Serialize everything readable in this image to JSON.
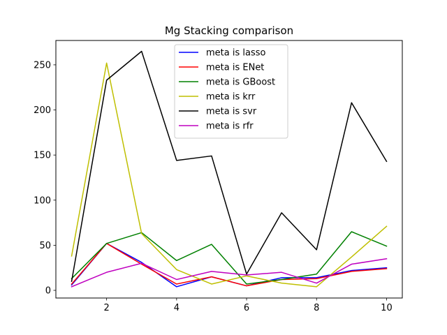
{
  "chart_data": {
    "type": "line",
    "title": "Mg Stacking comparison",
    "xlabel": "",
    "ylabel": "",
    "x": [
      1,
      2,
      3,
      4,
      5,
      6,
      7,
      8,
      9,
      10
    ],
    "xlim": [
      0.55,
      10.45
    ],
    "ylim": [
      -8.5,
      277
    ],
    "xticks": [
      2,
      4,
      6,
      8,
      10
    ],
    "yticks": [
      0,
      50,
      100,
      150,
      200,
      250
    ],
    "grid": false,
    "legend_position": "top-center",
    "series": [
      {
        "name": "meta is lasso",
        "color": "#0000ff",
        "values": [
          6,
          52,
          31,
          4,
          15,
          5,
          14,
          14,
          22,
          25
        ]
      },
      {
        "name": "meta is ENet",
        "color": "#ff0000",
        "values": [
          7,
          52,
          29,
          7,
          15,
          5,
          12,
          13,
          21,
          24
        ]
      },
      {
        "name": "meta is GBoost",
        "color": "#008000",
        "values": [
          13,
          52,
          64,
          33,
          51,
          7,
          12,
          18,
          65,
          49
        ]
      },
      {
        "name": "meta is krr",
        "color": "#bfbf00",
        "values": [
          38,
          252,
          63,
          23,
          7,
          16,
          8,
          4,
          37,
          71
        ]
      },
      {
        "name": "meta is svr",
        "color": "#000000",
        "values": [
          10,
          233,
          265,
          144,
          149,
          18,
          86,
          45,
          208,
          143
        ]
      },
      {
        "name": "meta is rfr",
        "color": "#bf00bf",
        "values": [
          4,
          20,
          30,
          12,
          21,
          17,
          20,
          8,
          29,
          35
        ]
      }
    ]
  }
}
